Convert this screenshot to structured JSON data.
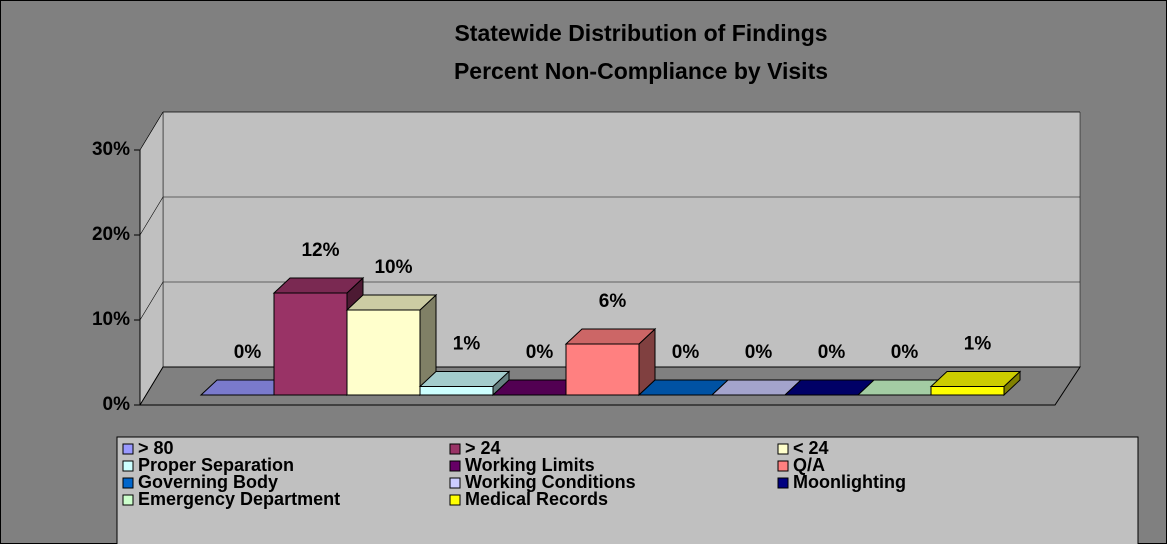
{
  "chart_data": {
    "type": "bar",
    "title": "Statewide Distribution of Findings",
    "subtitle": "Percent Non-Compliance by Visits",
    "ylim": [
      0,
      30
    ],
    "yticks": [
      {
        "value": 0,
        "label": "0%"
      },
      {
        "value": 10,
        "label": "10%"
      },
      {
        "value": 20,
        "label": "20%"
      },
      {
        "value": 30,
        "label": "30%"
      }
    ],
    "grid": true,
    "legend": "bottom",
    "series": [
      {
        "name": "> 80",
        "color": "#9999ff",
        "values": [
          0
        ],
        "value_labels": [
          "0%"
        ]
      },
      {
        "name": "> 24",
        "color": "#993366",
        "values": [
          12
        ],
        "value_labels": [
          "12%"
        ]
      },
      {
        "name": "< 24",
        "color": "#ffffcc",
        "values": [
          10
        ],
        "value_labels": [
          "10%"
        ]
      },
      {
        "name": "Proper Separation",
        "color": "#ccffff",
        "values": [
          1
        ],
        "value_labels": [
          "1%"
        ]
      },
      {
        "name": "Working Limits",
        "color": "#660066",
        "values": [
          0
        ],
        "value_labels": [
          "0%"
        ]
      },
      {
        "name": "Q/A",
        "color": "#ff8080",
        "values": [
          6
        ],
        "value_labels": [
          "6%"
        ]
      },
      {
        "name": "Governing Body",
        "color": "#0066cc",
        "values": [
          0
        ],
        "value_labels": [
          "0%"
        ]
      },
      {
        "name": "Working Conditions",
        "color": "#ccccff",
        "values": [
          0
        ],
        "value_labels": [
          "0%"
        ]
      },
      {
        "name": "Moonlighting",
        "color": "#000080",
        "values": [
          0
        ],
        "value_labels": [
          "0%"
        ]
      },
      {
        "name": "Emergency Department",
        "color": "#ccffcc",
        "values": [
          0
        ],
        "value_labels": [
          "0%"
        ]
      },
      {
        "name": "Medical Records",
        "color": "#ffff00",
        "values": [
          1
        ],
        "value_labels": [
          "1%"
        ]
      }
    ]
  }
}
